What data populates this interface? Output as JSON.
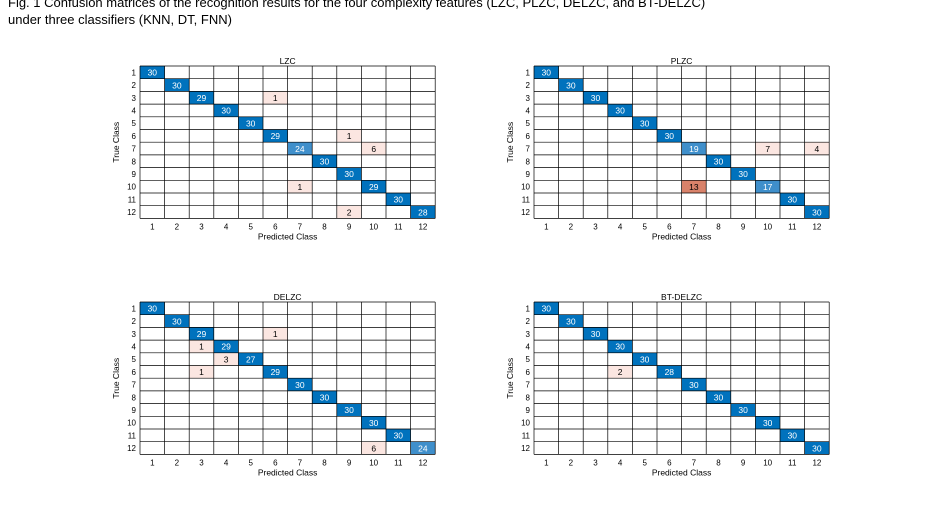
{
  "caption": {
    "line1": "Fig. 1  Confusion matrices of the recognition results for the four complexity features (LZC, PLZC, DELZC, and BT-DELZC)",
    "line2": "under three classifiers (KNN, DT, FNN)"
  },
  "colors": {
    "diag_high": "#0072BD",
    "diag_mid": "#3F8FCB",
    "off_strong": "#D9826A",
    "off_light": "#FBE6E1",
    "grid": "#000000"
  },
  "chart_data": [
    {
      "type": "heatmap",
      "title": "LZC",
      "xlabel": "Predicted Class",
      "ylabel": "True Class",
      "classes": [
        "1",
        "2",
        "3",
        "4",
        "5",
        "6",
        "7",
        "8",
        "9",
        "10",
        "11",
        "12"
      ],
      "cells": [
        [
          1,
          1,
          30
        ],
        [
          2,
          2,
          30
        ],
        [
          3,
          3,
          29
        ],
        [
          3,
          6,
          1
        ],
        [
          4,
          4,
          30
        ],
        [
          5,
          5,
          30
        ],
        [
          6,
          6,
          29
        ],
        [
          6,
          9,
          1
        ],
        [
          7,
          7,
          24
        ],
        [
          7,
          10,
          6
        ],
        [
          8,
          8,
          30
        ],
        [
          9,
          9,
          30
        ],
        [
          10,
          7,
          1
        ],
        [
          10,
          10,
          29
        ],
        [
          11,
          11,
          30
        ],
        [
          12,
          9,
          2
        ],
        [
          12,
          12,
          28
        ]
      ]
    },
    {
      "type": "heatmap",
      "title": "PLZC",
      "xlabel": "Predicted Class",
      "ylabel": "True Class",
      "classes": [
        "1",
        "2",
        "3",
        "4",
        "5",
        "6",
        "7",
        "8",
        "9",
        "10",
        "11",
        "12"
      ],
      "cells": [
        [
          1,
          1,
          30
        ],
        [
          2,
          2,
          30
        ],
        [
          3,
          3,
          30
        ],
        [
          4,
          4,
          30
        ],
        [
          5,
          5,
          30
        ],
        [
          6,
          6,
          30
        ],
        [
          7,
          7,
          19
        ],
        [
          7,
          10,
          7
        ],
        [
          7,
          12,
          4
        ],
        [
          8,
          8,
          30
        ],
        [
          9,
          9,
          30
        ],
        [
          10,
          7,
          13
        ],
        [
          10,
          10,
          17
        ],
        [
          11,
          11,
          30
        ],
        [
          12,
          12,
          30
        ]
      ]
    },
    {
      "type": "heatmap",
      "title": "DELZC",
      "xlabel": "Predicted Class",
      "ylabel": "True Class",
      "classes": [
        "1",
        "2",
        "3",
        "4",
        "5",
        "6",
        "7",
        "8",
        "9",
        "10",
        "11",
        "12"
      ],
      "cells": [
        [
          1,
          1,
          30
        ],
        [
          2,
          2,
          30
        ],
        [
          3,
          3,
          29
        ],
        [
          3,
          6,
          1
        ],
        [
          4,
          3,
          1
        ],
        [
          4,
          4,
          29
        ],
        [
          5,
          4,
          3
        ],
        [
          5,
          5,
          27
        ],
        [
          6,
          3,
          1
        ],
        [
          6,
          6,
          29
        ],
        [
          7,
          7,
          30
        ],
        [
          8,
          8,
          30
        ],
        [
          9,
          9,
          30
        ],
        [
          10,
          10,
          30
        ],
        [
          11,
          11,
          30
        ],
        [
          12,
          10,
          6
        ],
        [
          12,
          12,
          24
        ]
      ]
    },
    {
      "type": "heatmap",
      "title": "BT-DELZC",
      "xlabel": "Predicted Class",
      "ylabel": "True Class",
      "classes": [
        "1",
        "2",
        "3",
        "4",
        "5",
        "6",
        "7",
        "8",
        "9",
        "10",
        "11",
        "12"
      ],
      "cells": [
        [
          1,
          1,
          30
        ],
        [
          2,
          2,
          30
        ],
        [
          3,
          3,
          30
        ],
        [
          4,
          4,
          30
        ],
        [
          5,
          5,
          30
        ],
        [
          6,
          4,
          2
        ],
        [
          6,
          6,
          28
        ],
        [
          7,
          7,
          30
        ],
        [
          8,
          8,
          30
        ],
        [
          9,
          9,
          30
        ],
        [
          10,
          10,
          30
        ],
        [
          11,
          11,
          30
        ],
        [
          12,
          12,
          30
        ]
      ]
    }
  ]
}
